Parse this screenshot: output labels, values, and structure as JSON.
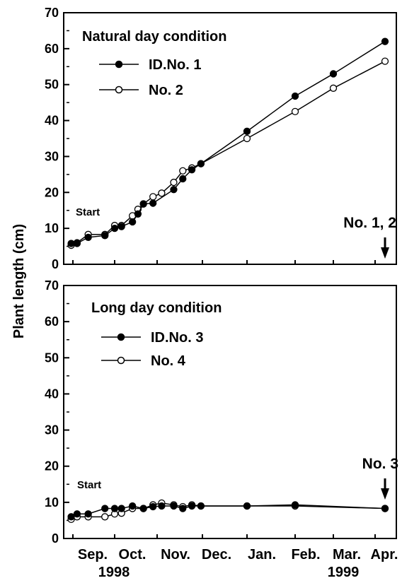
{
  "ylabel": "Plant length  (cm)",
  "x_tick_labels": [
    "Sep.",
    "Oct.",
    "Nov.",
    "Dec.",
    "Jan.",
    "Feb.",
    "Mar.",
    "Apr."
  ],
  "year_labels": [
    "1998",
    "1999"
  ],
  "chart_data": [
    {
      "type": "line",
      "title": "Natural day condition",
      "ylim": [
        0,
        70
      ],
      "y_ticks": [
        0,
        10,
        20,
        30,
        40,
        50,
        60,
        70
      ],
      "start_label": "Start",
      "arrow_label": "No. 1, 2",
      "arrow_date": "1999-04-08",
      "series": [
        {
          "name": "ID.No. 1",
          "marker": "filled",
          "x": [
            "1998-08-29",
            "1998-09-04",
            "1998-09-12",
            "1998-09-24",
            "1998-10-01",
            "1998-10-06",
            "1998-10-14",
            "1998-10-18",
            "1998-10-22",
            "1998-10-29",
            "1998-11-12",
            "1998-11-18",
            "1998-11-24",
            "1998-11-30",
            "1999-01-01",
            "1999-02-01",
            "1999-03-01",
            "1999-04-08"
          ],
          "y": [
            5.8,
            5.8,
            7.5,
            8.0,
            10.0,
            10.5,
            11.8,
            14.0,
            16.8,
            17.0,
            20.8,
            23.8,
            26.3,
            28.0,
            37.0,
            46.8,
            53.0,
            62.0
          ]
        },
        {
          "name": "No. 2",
          "marker": "open",
          "x": [
            "1998-08-29",
            "1998-09-04",
            "1998-09-12",
            "1998-09-24",
            "1998-10-01",
            "1998-10-06",
            "1998-10-14",
            "1998-10-18",
            "1998-10-22",
            "1998-10-29",
            "1998-11-04",
            "1998-11-12",
            "1998-11-18",
            "1998-11-24",
            "1998-11-30",
            "1999-01-01",
            "1999-02-01",
            "1999-03-01",
            "1999-04-08"
          ],
          "y": [
            5.3,
            6.0,
            8.3,
            8.3,
            10.8,
            10.8,
            13.5,
            15.3,
            16.8,
            18.8,
            19.8,
            22.8,
            26.0,
            26.8,
            28.0,
            35.0,
            42.5,
            49.0,
            56.5
          ]
        }
      ]
    },
    {
      "type": "line",
      "title": "Long day condition",
      "ylim": [
        0,
        70
      ],
      "y_ticks": [
        0,
        10,
        20,
        30,
        40,
        50,
        60,
        70
      ],
      "start_label": "Start",
      "arrow_label": "No. 3",
      "arrow_date": "1999-04-08",
      "series": [
        {
          "name": "ID.No. 3",
          "marker": "filled",
          "x": [
            "1998-08-29",
            "1998-09-04",
            "1998-09-12",
            "1998-09-24",
            "1998-10-01",
            "1998-10-06",
            "1998-10-14",
            "1998-10-22",
            "1998-10-29",
            "1998-11-04",
            "1998-11-12",
            "1998-11-18",
            "1998-11-24",
            "1998-11-30",
            "1999-01-01",
            "1999-02-01",
            "1999-04-08"
          ],
          "y": [
            6.0,
            6.8,
            6.8,
            8.3,
            8.3,
            8.3,
            9.0,
            8.3,
            8.8,
            9.0,
            9.0,
            8.3,
            9.0,
            9.0,
            9.0,
            9.3,
            8.3
          ]
        },
        {
          "name": "No. 4",
          "marker": "open",
          "x": [
            "1998-08-29",
            "1998-09-04",
            "1998-09-12",
            "1998-09-24",
            "1998-10-01",
            "1998-10-06",
            "1998-10-14",
            "1998-10-22",
            "1998-10-29",
            "1998-11-04",
            "1998-11-12",
            "1998-11-18",
            "1998-11-24",
            "1998-11-30",
            "1999-01-01",
            "1999-02-01",
            "1999-04-08"
          ],
          "y": [
            5.3,
            6.0,
            6.0,
            6.0,
            6.8,
            7.0,
            8.3,
            8.3,
            9.3,
            9.8,
            9.3,
            8.8,
            9.3,
            9.0,
            9.0,
            9.0,
            8.3
          ]
        }
      ]
    }
  ]
}
